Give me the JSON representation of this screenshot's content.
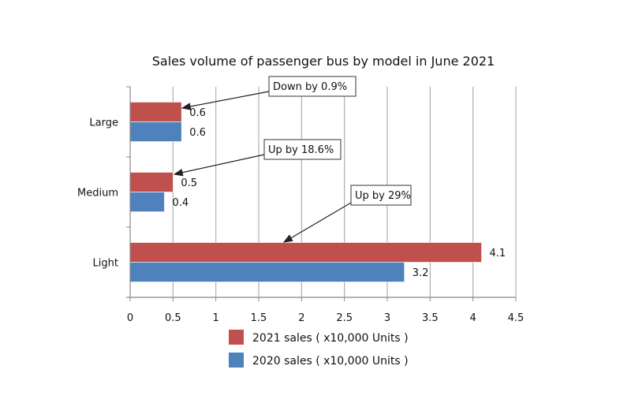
{
  "chart_data": {
    "type": "bar",
    "orientation": "horizontal",
    "title": "Sales volume of passenger bus by model in  June 2021",
    "categories": [
      "Large",
      "Medium",
      "Light"
    ],
    "series": [
      {
        "name": "2021 sales ( x10,000 Units )",
        "values": [
          0.6,
          0.5,
          4.1
        ],
        "color": "#c0504d"
      },
      {
        "name": "2020 sales ( x10,000 Units )",
        "values": [
          0.6,
          0.4,
          3.2
        ],
        "color": "#4f81bd"
      }
    ],
    "data_labels": [
      [
        "0.6",
        "0.5",
        "4.1"
      ],
      [
        "0.6",
        "0.4",
        "3.2"
      ]
    ],
    "xlim": [
      0,
      4.5
    ],
    "xticks": [
      "0",
      "0.5",
      "1",
      "1.5",
      "2",
      "2.5",
      "3",
      "3.5",
      "4",
      "4.5"
    ],
    "grid": "vertical",
    "legend": "bottom",
    "annotations": [
      {
        "text": "Down by 0.9%",
        "category": "Large"
      },
      {
        "text": "Up by 18.6%",
        "category": "Medium"
      },
      {
        "text": "Up by 29%",
        "category": "Light"
      }
    ]
  }
}
